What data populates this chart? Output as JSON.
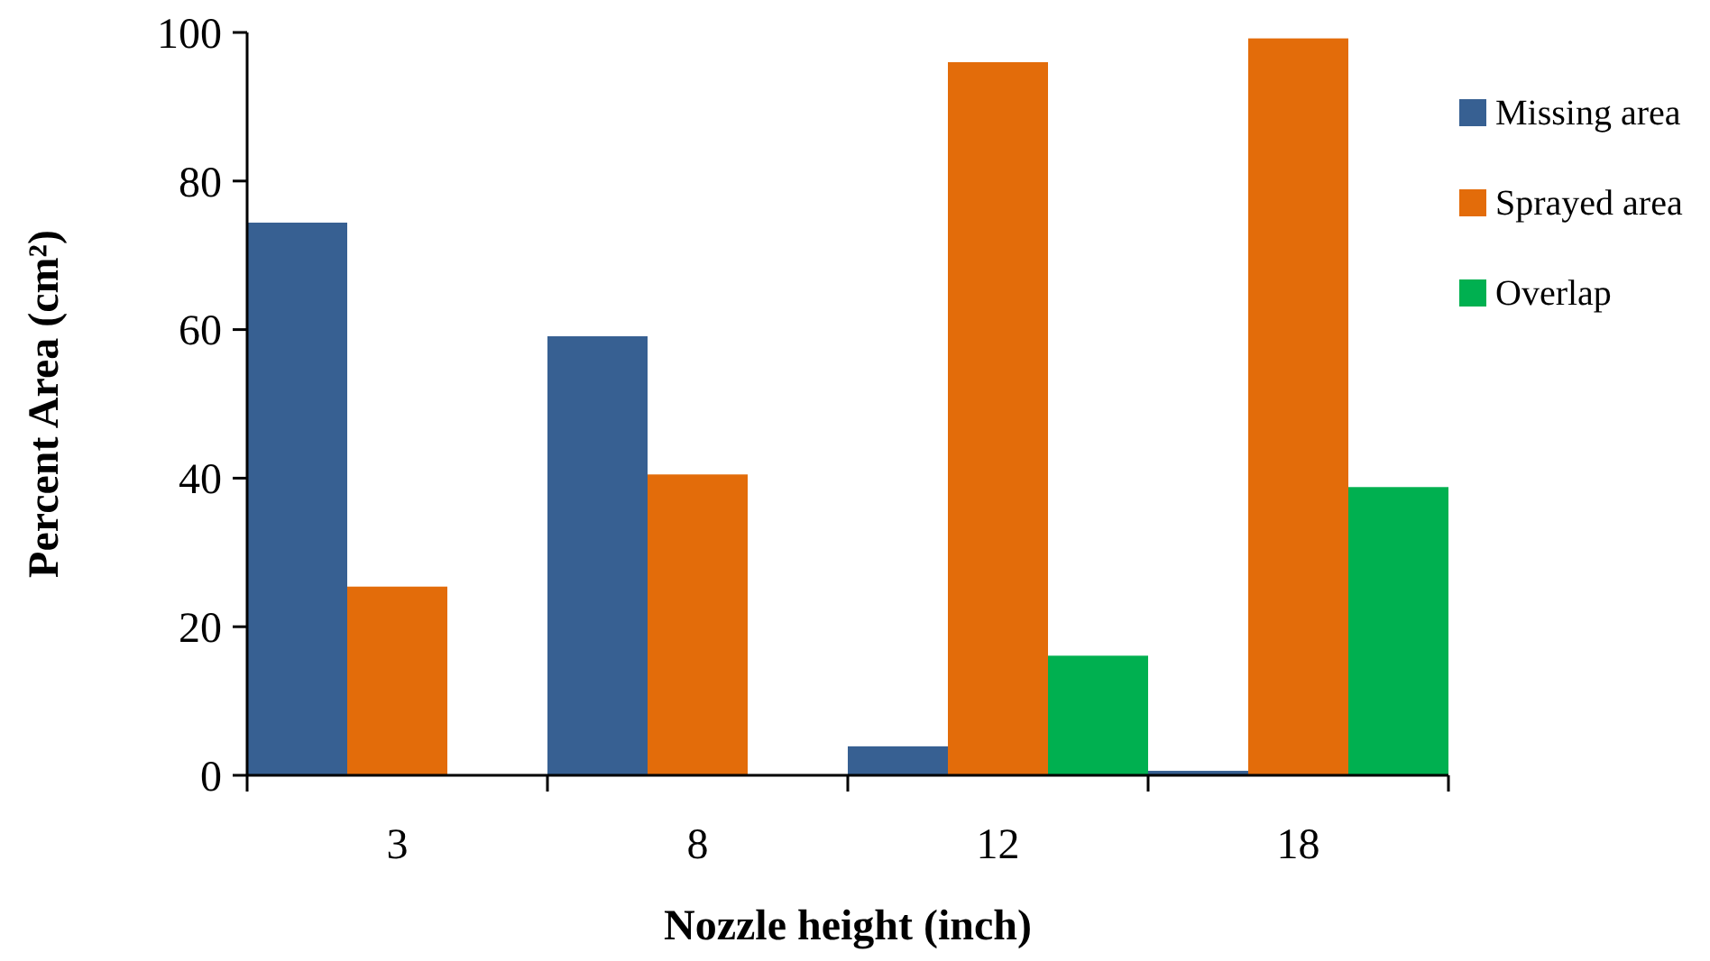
{
  "chart_data": {
    "type": "bar",
    "xlabel": "Nozzle height (inch)",
    "ylabel": "Percent Area (cm²)",
    "categories": [
      "3",
      "8",
      "12",
      "18"
    ],
    "series": [
      {
        "name": "Missing area",
        "color": "#376092",
        "values": [
          74.4,
          59.1,
          3.9,
          0.6
        ]
      },
      {
        "name": "Sprayed area",
        "color": "#e36c0a",
        "values": [
          25.4,
          40.5,
          96,
          99.2
        ]
      },
      {
        "name": "Overlap",
        "color": "#00b050",
        "values": [
          0,
          0,
          16.1,
          38.8
        ]
      }
    ],
    "ylim": [
      0,
      100
    ],
    "yticks": [
      0,
      20,
      40,
      60,
      80,
      100
    ],
    "grid": false,
    "legend": "right"
  }
}
